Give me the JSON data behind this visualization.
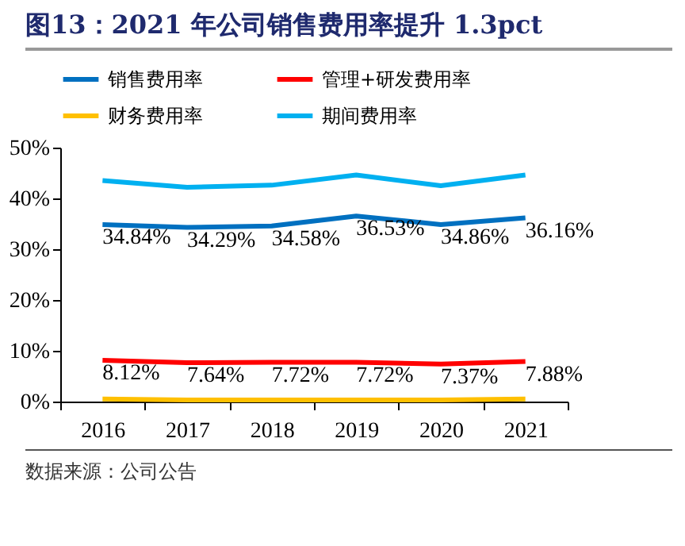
{
  "chart_data": {
    "type": "line",
    "title": "图13：2021 年公司销售费用率提升 1.3pct",
    "categories": [
      "2016",
      "2017",
      "2018",
      "2019",
      "2020",
      "2021"
    ],
    "series": [
      {
        "name": "销售费用率",
        "color": "#0070c0",
        "values": [
          34.84,
          34.29,
          34.58,
          36.53,
          34.86,
          36.16
        ],
        "value_labels": [
          "34.84%",
          "34.29%",
          "34.58%",
          "36.53%",
          "34.86%",
          "36.16%"
        ]
      },
      {
        "name": "管理+研发费用率",
        "color": "#ff0000",
        "values": [
          8.12,
          7.64,
          7.72,
          7.72,
          7.37,
          7.88
        ],
        "value_labels": [
          "8.12%",
          "7.64%",
          "7.72%",
          "7.72%",
          "7.37%",
          "7.88%"
        ]
      },
      {
        "name": "财务费用率",
        "color": "#ffc000",
        "values": [
          0.5,
          0.3,
          0.3,
          0.3,
          0.3,
          0.5
        ]
      },
      {
        "name": "期间费用率",
        "color": "#00b0f0",
        "values": [
          43.5,
          42.2,
          42.6,
          44.6,
          42.5,
          44.6
        ]
      }
    ],
    "ylim": [
      0,
      50
    ],
    "yticks": [
      {
        "value": 0,
        "label": "0%"
      },
      {
        "value": 10,
        "label": "10%"
      },
      {
        "value": 20,
        "label": "20%"
      },
      {
        "value": 30,
        "label": "30%"
      },
      {
        "value": 40,
        "label": "40%"
      },
      {
        "value": 50,
        "label": "50%"
      }
    ],
    "grid": false,
    "legend": "top",
    "marker": "none",
    "line_style": "solid",
    "annotations": [
      "数据来源：公司公告"
    ]
  }
}
